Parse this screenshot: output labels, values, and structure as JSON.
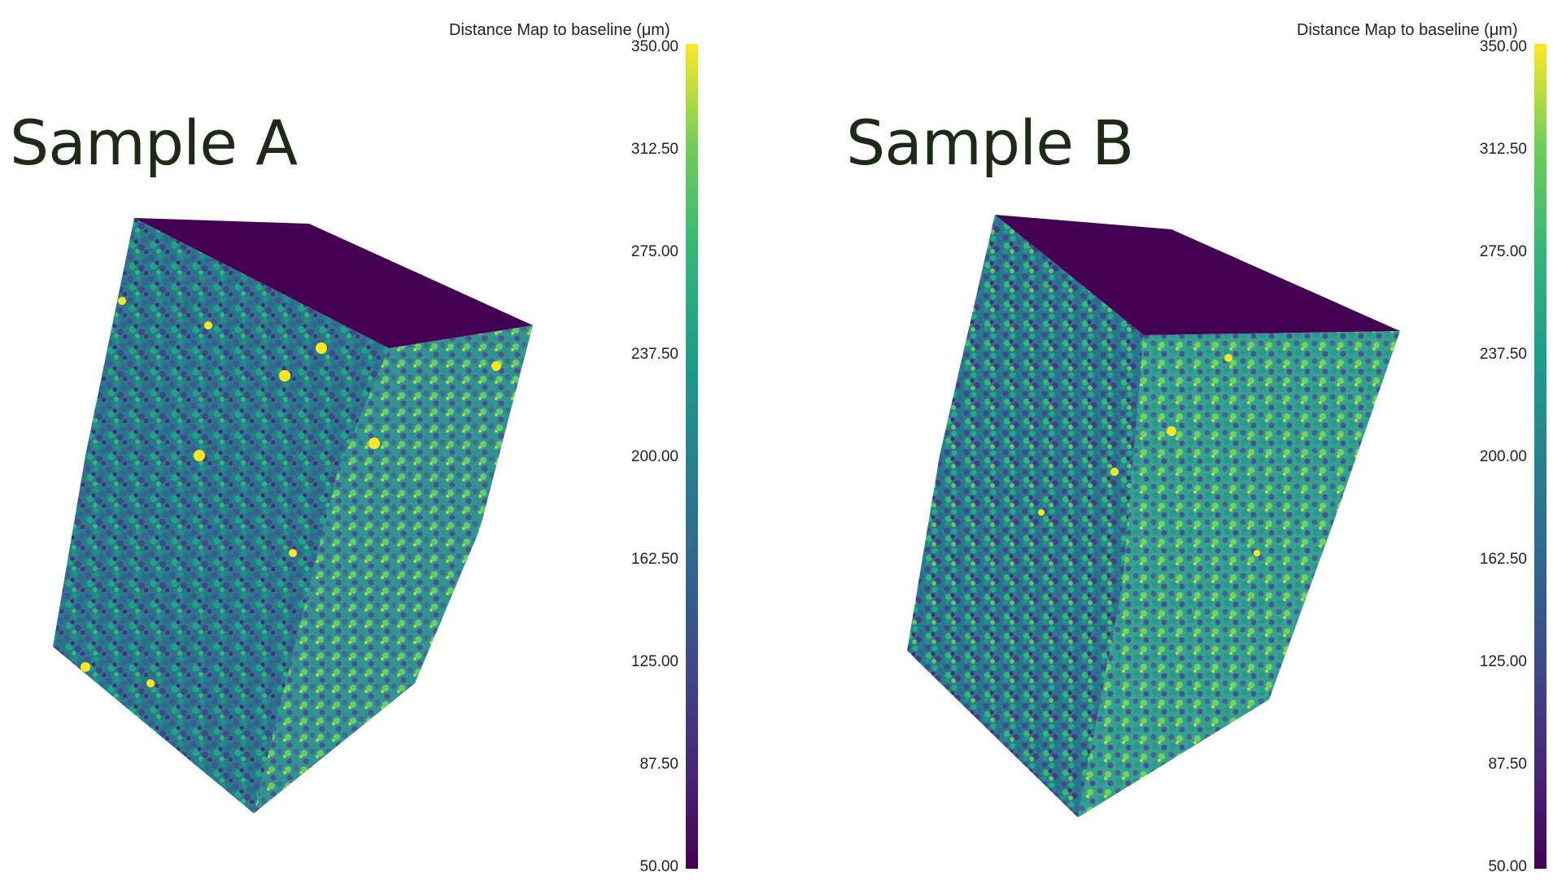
{
  "colorbar": {
    "title": "Distance Map to baseline (μm)",
    "min": 50.0,
    "max": 350.0,
    "ticks": [
      "350.00",
      "312.50",
      "275.00",
      "237.50",
      "200.00",
      "162.50",
      "125.00",
      "87.50",
      "50.00"
    ],
    "colormap": "viridis",
    "colors": [
      "#440154",
      "#482878",
      "#3e4a89",
      "#31688e",
      "#26828e",
      "#1f9e89",
      "#35b779",
      "#6ece58",
      "#fde725"
    ]
  },
  "panels": [
    {
      "title": "Sample A",
      "top_face_color": "#440154"
    },
    {
      "title": "Sample B",
      "top_face_color": "#440154"
    }
  ]
}
